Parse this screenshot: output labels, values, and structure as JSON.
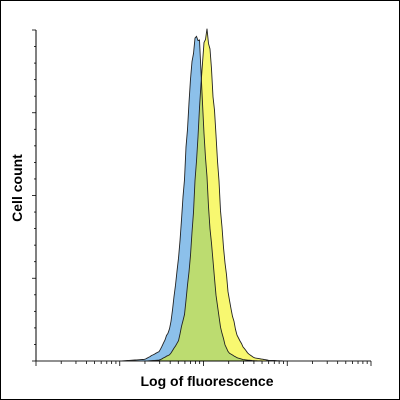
{
  "chart_data": {
    "type": "area",
    "xlabel": "Log of fluorescence",
    "ylabel": "Cell count",
    "x_scale": "log",
    "xlim": [
      1,
      10000
    ],
    "ylim": [
      0,
      100
    ],
    "grid": false,
    "legend": "none",
    "series": [
      {
        "color": "#8cc0ea",
        "x": [
          1,
          10,
          20,
          30,
          40,
          50,
          60,
          70,
          80,
          90,
          100,
          120,
          140,
          160,
          180,
          200,
          250,
          300,
          400,
          600,
          1000,
          10000
        ],
        "values": [
          0,
          0,
          0.5,
          3,
          10,
          30,
          58,
          85,
          99,
          96,
          72,
          40,
          20,
          10,
          5,
          2.5,
          1,
          0.4,
          0.1,
          0,
          0,
          0
        ]
      },
      {
        "color": "#f8f870",
        "x": [
          1,
          10,
          20,
          30,
          40,
          50,
          60,
          70,
          80,
          90,
          100,
          110,
          120,
          140,
          160,
          180,
          200,
          250,
          300,
          350,
          400,
          600,
          1000,
          10000
        ],
        "values": [
          0,
          0,
          0,
          0.3,
          2,
          6,
          15,
          32,
          55,
          78,
          94,
          99,
          93,
          70,
          46,
          30,
          19,
          8,
          4,
          2,
          1,
          0.2,
          0,
          0
        ]
      }
    ],
    "overlap_color": "#bcdc70",
    "edge_color": "#222222"
  }
}
